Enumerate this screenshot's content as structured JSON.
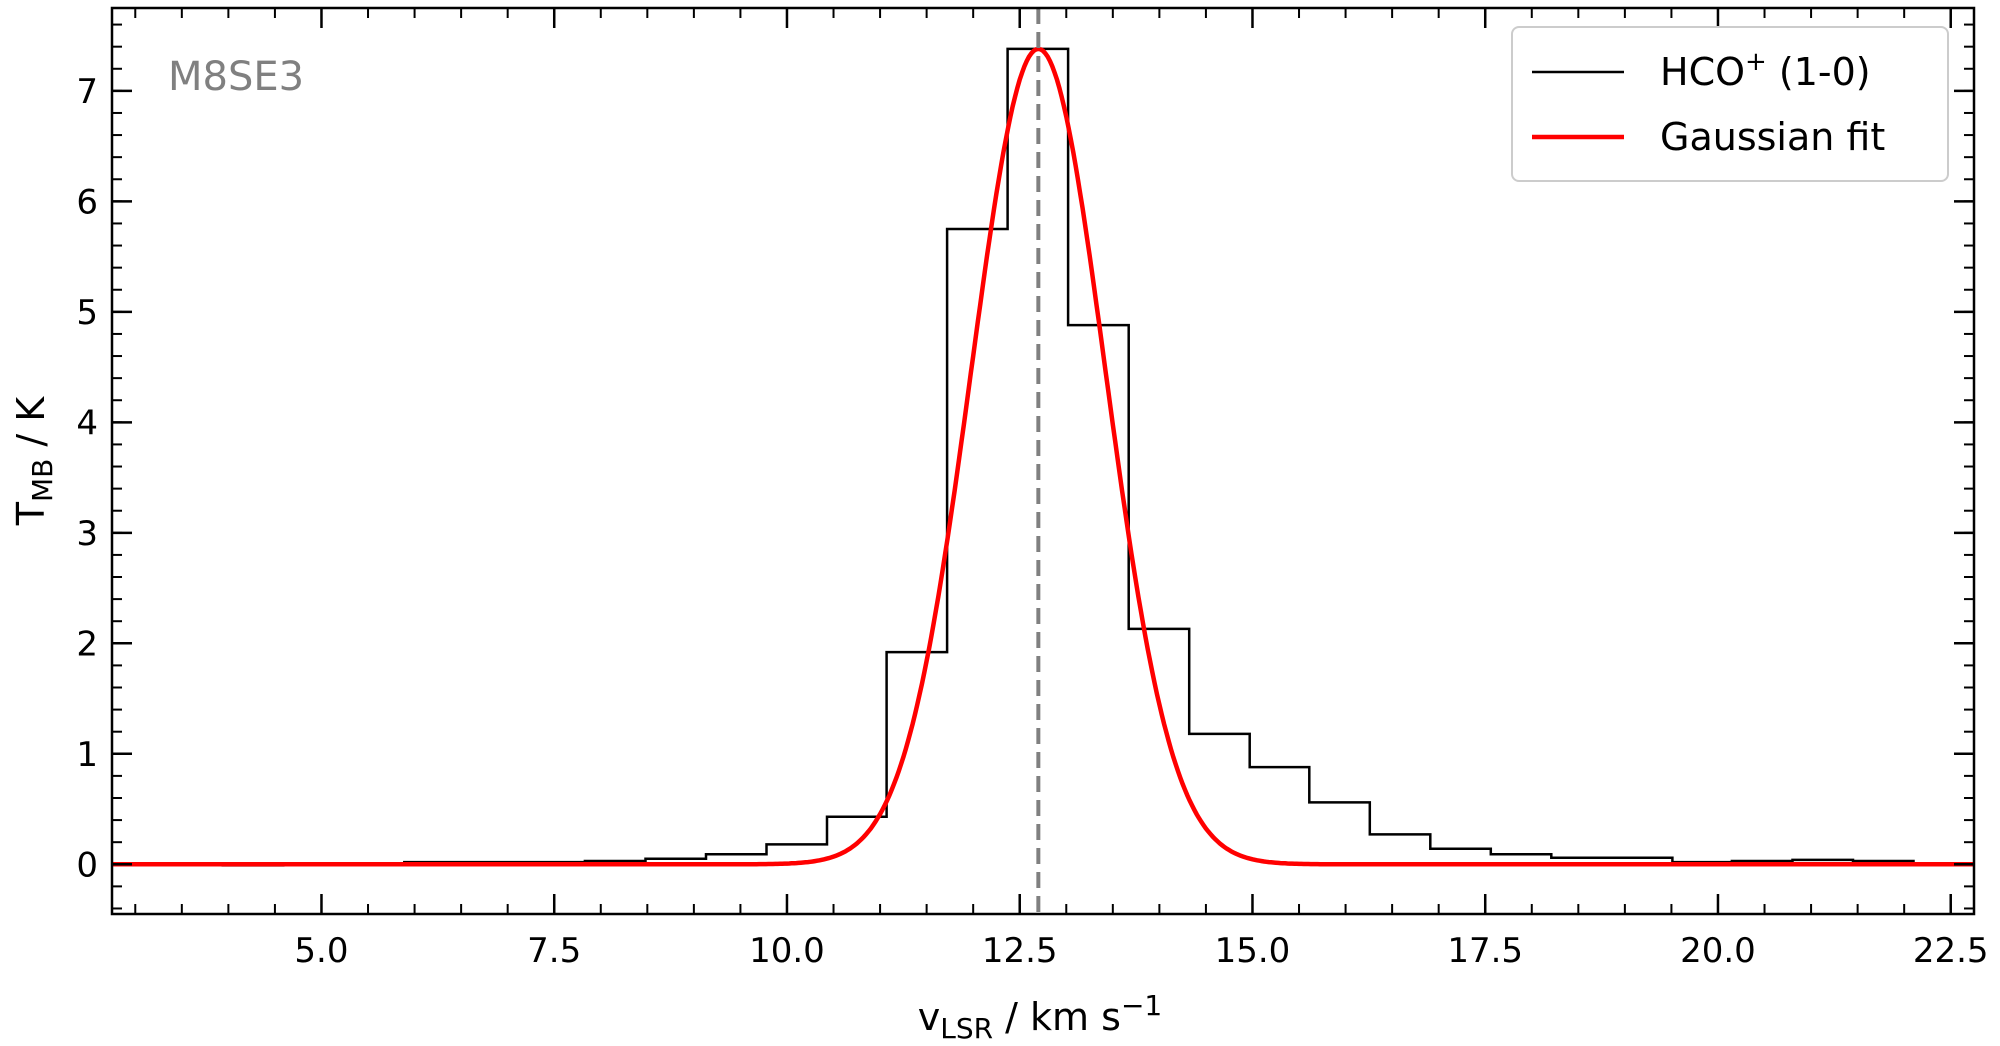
{
  "chart_data": {
    "type": "line",
    "annotation": "M8SE3",
    "xlabel": {
      "main": "v",
      "sub": "LSR",
      "rest": " / km s",
      "sup": "−1"
    },
    "ylabel": {
      "main": "T",
      "sub": "MB",
      "rest": " / K"
    },
    "xlim": [
      2.75,
      22.75
    ],
    "ylim": [
      -0.45,
      7.75
    ],
    "xticks": [
      5.0,
      7.5,
      10.0,
      12.5,
      15.0,
      17.5,
      20.0,
      22.5
    ],
    "xtick_labels": [
      "5.0",
      "7.5",
      "10.0",
      "12.5",
      "15.0",
      "17.5",
      "20.0",
      "22.5"
    ],
    "yticks": [
      0,
      1,
      2,
      3,
      4,
      5,
      6,
      7
    ],
    "ytick_labels": [
      "0",
      "1",
      "2",
      "3",
      "4",
      "5",
      "6",
      "7"
    ],
    "x_minor_step": 0.5,
    "y_minor_step": 0.2,
    "grid": false,
    "legend_position": "top-right",
    "series": [
      {
        "name_parts": {
          "main": "HCO",
          "sup": "+",
          "rest": " (1-0)"
        },
        "style": "step",
        "color": "#000000",
        "bin_edges": [
          2.75,
          3.29,
          3.94,
          4.59,
          5.24,
          5.89,
          6.53,
          7.18,
          7.83,
          8.48,
          9.13,
          9.78,
          10.43,
          11.07,
          11.72,
          12.37,
          13.02,
          13.67,
          14.32,
          14.97,
          15.61,
          16.26,
          16.91,
          17.56,
          18.21,
          18.86,
          19.51,
          20.15,
          20.8,
          21.45,
          22.1,
          22.75
        ],
        "values": [
          0.01,
          0.01,
          -0.01,
          0.0,
          0.01,
          0.02,
          0.02,
          0.02,
          0.03,
          0.05,
          0.09,
          0.18,
          0.43,
          1.92,
          5.75,
          7.38,
          4.88,
          2.13,
          1.18,
          0.88,
          0.56,
          0.27,
          0.14,
          0.09,
          0.06,
          0.06,
          0.02,
          0.03,
          0.04,
          0.03,
          0.01
        ]
      },
      {
        "name": "Gaussian fit",
        "style": "line",
        "color": "#ff0000",
        "amplitude": 7.38,
        "center": 12.7,
        "sigma": 0.72
      }
    ],
    "vline": {
      "x": 12.7,
      "color": "#808080",
      "style": "dashed"
    }
  }
}
